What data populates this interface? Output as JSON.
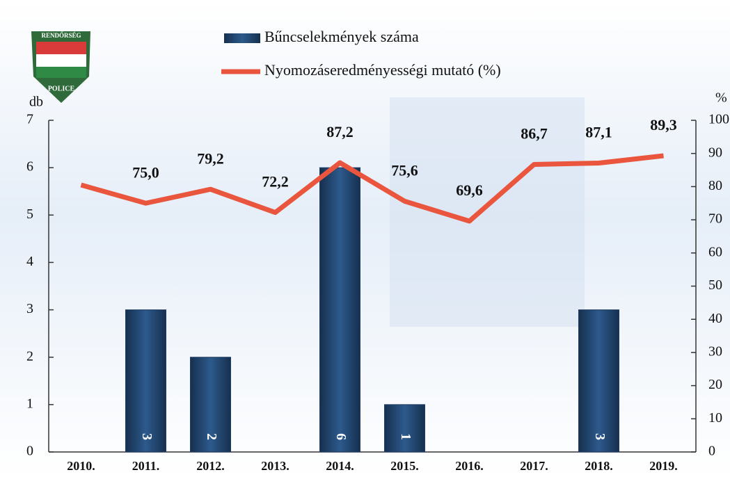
{
  "logo": {
    "top": "RENDŐRSÉG",
    "bottom": "POLICE"
  },
  "chart_data": {
    "type": "bar-line",
    "categories": [
      "2010.",
      "2011.",
      "2012.",
      "2013.",
      "2014.",
      "2015.",
      "2016.",
      "2017.",
      "2018.",
      "2019."
    ],
    "series": [
      {
        "name": "Bűncselekmények száma",
        "type": "bar",
        "axis": "y",
        "color": "#1f3d66",
        "values": [
          null,
          3,
          2,
          null,
          6,
          1,
          null,
          null,
          3,
          null
        ]
      },
      {
        "name": "Nyomozáseredményességi mutató (%)",
        "type": "line",
        "axis": "y2",
        "color": "#e9553d",
        "values": [
          80.5,
          75.0,
          79.2,
          72.2,
          87.2,
          75.6,
          69.6,
          86.7,
          87.1,
          89.3
        ],
        "value_labels": [
          null,
          "75,0",
          "79,2",
          "72,2",
          "87,2",
          "75,6",
          "69,6",
          "86,7",
          "87,1",
          "89,3"
        ]
      }
    ],
    "ylabel": "db",
    "ylim": [
      0,
      7
    ],
    "yticks": [
      0,
      1,
      2,
      3,
      4,
      5,
      6,
      7
    ],
    "y2label": "%",
    "y2lim": [
      0,
      100
    ],
    "y2ticks": [
      0,
      10,
      20,
      30,
      40,
      50,
      60,
      70,
      80,
      90,
      100
    ],
    "legend": "top"
  }
}
